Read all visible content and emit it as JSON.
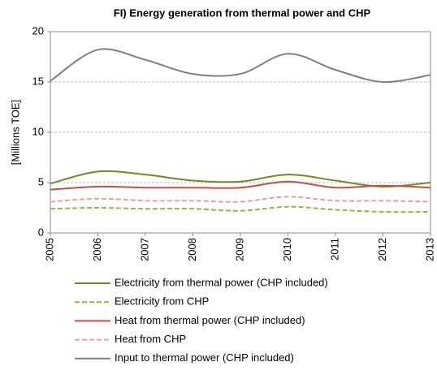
{
  "chart_data": {
    "type": "line",
    "title": "FI) Energy generation from thermal power and CHP",
    "y_label": "[Millions TOE]",
    "categories": [
      "2005",
      "2006",
      "2007",
      "2008",
      "2009",
      "2010",
      "2011",
      "2012",
      "2013"
    ],
    "ylim": [
      0,
      20
    ],
    "yticks": [
      0,
      5,
      10,
      15,
      20
    ],
    "grid": true,
    "smooth": true,
    "legend": "bottom",
    "series": [
      {
        "name": "Electricity from thermal power (CHP included)",
        "color": "#6b8e23",
        "dash": false,
        "values": [
          4.9,
          6.1,
          5.8,
          5.2,
          5.1,
          5.8,
          5.2,
          4.6,
          5.0
        ]
      },
      {
        "name": "Electricity from CHP",
        "color": "#8fbc3a",
        "dash": true,
        "values": [
          2.4,
          2.5,
          2.4,
          2.4,
          2.2,
          2.6,
          2.3,
          2.1,
          2.1
        ]
      },
      {
        "name": "Heat from thermal power (CHP included)",
        "color": "#c0504d",
        "dash": false,
        "values": [
          4.3,
          4.6,
          4.5,
          4.5,
          4.5,
          5.1,
          4.5,
          4.7,
          4.5
        ]
      },
      {
        "name": "Heat from CHP",
        "color": "#e6a0a0",
        "dash": true,
        "values": [
          3.1,
          3.4,
          3.2,
          3.2,
          3.1,
          3.6,
          3.2,
          3.2,
          3.1
        ]
      },
      {
        "name": "Input to thermal power (CHP included)",
        "color": "#808080",
        "dash": false,
        "values": [
          15.1,
          18.2,
          17.2,
          15.8,
          15.8,
          17.8,
          16.2,
          15.0,
          15.7
        ]
      }
    ]
  }
}
